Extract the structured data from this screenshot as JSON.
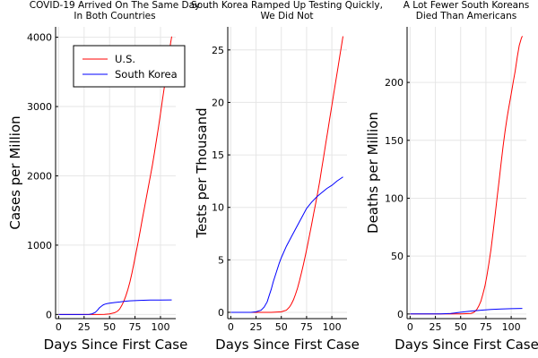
{
  "chart_data": [
    {
      "type": "line",
      "title": [
        "COVID-19 Arrived On The Same Day",
        "In Both Countries"
      ],
      "xlabel": "Days Since First Case",
      "ylabel": "Cases per Million",
      "xlim": [
        -3,
        115
      ],
      "ylim": [
        -60,
        4150
      ],
      "xticks": [
        0,
        25,
        50,
        75,
        100
      ],
      "yticks": [
        0,
        1000,
        2000,
        3000,
        4000
      ],
      "grid": true,
      "legend": "top-right",
      "series": [
        {
          "name": "U.S.",
          "color": "#ff0000",
          "x": [
            0,
            20,
            40,
            45,
            50,
            55,
            58,
            60,
            62,
            64,
            66,
            68,
            70,
            72,
            74,
            76,
            78,
            80,
            82,
            84,
            86,
            88,
            90,
            92,
            94,
            96,
            98,
            100,
            102,
            104,
            106,
            108,
            110,
            111
          ],
          "y": [
            0,
            0,
            0,
            2,
            8,
            25,
            50,
            80,
            130,
            190,
            270,
            360,
            470,
            600,
            740,
            890,
            1040,
            1200,
            1360,
            1520,
            1680,
            1830,
            1990,
            2150,
            2330,
            2510,
            2700,
            2900,
            3100,
            3300,
            3500,
            3700,
            3920,
            4010
          ]
        },
        {
          "name": "South Korea",
          "color": "#0000ff",
          "x": [
            0,
            20,
            30,
            33,
            36,
            38,
            40,
            42,
            44,
            46,
            48,
            50,
            55,
            60,
            65,
            70,
            80,
            90,
            100,
            111
          ],
          "y": [
            0,
            0,
            2,
            10,
            30,
            60,
            95,
            120,
            140,
            150,
            158,
            163,
            172,
            180,
            190,
            197,
            203,
            207,
            209,
            210
          ]
        }
      ]
    },
    {
      "type": "line",
      "title": [
        "South Korea Ramped Up Testing Quickly,",
        "We Did Not"
      ],
      "xlabel": "Days Since First Case",
      "ylabel": "Tests per Thousand",
      "xlim": [
        -3,
        115
      ],
      "ylim": [
        -0.6,
        27.2
      ],
      "xticks": [
        0,
        25,
        50,
        75,
        100
      ],
      "yticks": [
        0,
        5,
        10,
        15,
        20,
        25
      ],
      "grid": true,
      "series": [
        {
          "name": "U.S.",
          "color": "#ff0000",
          "x": [
            0,
            40,
            50,
            55,
            58,
            60,
            62,
            64,
            66,
            68,
            70,
            72,
            74,
            76,
            78,
            80,
            82,
            84,
            86,
            88,
            90,
            92,
            94,
            96,
            98,
            100,
            102,
            104,
            106,
            108,
            110,
            111
          ],
          "y": [
            0,
            0,
            0.05,
            0.2,
            0.5,
            0.8,
            1.2,
            1.7,
            2.3,
            3.0,
            3.8,
            4.6,
            5.5,
            6.4,
            7.4,
            8.4,
            9.4,
            10.4,
            11.4,
            12.5,
            13.7,
            14.9,
            16.1,
            17.3,
            18.5,
            19.7,
            20.9,
            22.1,
            23.3,
            24.5,
            25.7,
            26.3
          ]
        },
        {
          "name": "South Korea",
          "color": "#0000ff",
          "x": [
            0,
            20,
            25,
            30,
            33,
            36,
            38,
            40,
            42,
            45,
            48,
            50,
            55,
            60,
            65,
            70,
            75,
            80,
            85,
            90,
            95,
            100,
            105,
            111
          ],
          "y": [
            0,
            0,
            0.05,
            0.2,
            0.5,
            1.0,
            1.6,
            2.2,
            2.9,
            3.8,
            4.7,
            5.2,
            6.3,
            7.2,
            8.1,
            9.0,
            9.9,
            10.5,
            11.0,
            11.4,
            11.8,
            12.1,
            12.5,
            12.9
          ]
        }
      ]
    },
    {
      "type": "line",
      "title": [
        "A Lot Fewer South Koreans",
        "Died Than Americans"
      ],
      "xlabel": "Days Since First Case",
      "ylabel": "Deaths per Million",
      "xlim": [
        -3,
        115
      ],
      "ylim": [
        -4,
        248
      ],
      "xticks": [
        0,
        25,
        50,
        75,
        100
      ],
      "yticks": [
        0,
        50,
        100,
        150,
        200
      ],
      "grid": true,
      "series": [
        {
          "name": "U.S.",
          "color": "#ff0000",
          "x": [
            0,
            50,
            60,
            62,
            64,
            66,
            68,
            70,
            72,
            74,
            76,
            78,
            80,
            82,
            84,
            86,
            88,
            90,
            92,
            94,
            96,
            98,
            100,
            102,
            104,
            106,
            108,
            110,
            111
          ],
          "y": [
            0,
            0,
            0.5,
            1,
            2,
            4,
            7,
            11,
            17,
            24,
            33,
            44,
            56,
            70,
            85,
            100,
            115,
            130,
            145,
            158,
            170,
            180,
            190,
            200,
            210,
            222,
            232,
            238,
            240
          ]
        },
        {
          "name": "South Korea",
          "color": "#0000ff",
          "x": [
            0,
            30,
            40,
            50,
            60,
            70,
            80,
            90,
            100,
            111
          ],
          "y": [
            0,
            0,
            0.5,
            1.5,
            2.5,
            3.3,
            3.9,
            4.3,
            4.6,
            4.8
          ]
        }
      ]
    }
  ]
}
